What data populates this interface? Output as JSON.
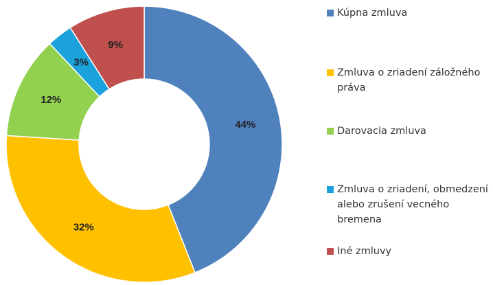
{
  "chart_data": {
    "type": "donut",
    "categories": [
      "Kúpna zmluva",
      "Zmluva o zriadení záložného práva",
      "Darovacia zmluva",
      "Zmluva o zriadení, obmedzení alebo zrušení vecného bremena",
      "Iné zmluvy"
    ],
    "values": [
      44,
      32,
      12,
      3,
      9
    ],
    "value_labels": [
      "44%",
      "32%",
      "12%",
      "3%",
      "9%"
    ],
    "colors": [
      "#4f81bd",
      "#ffc000",
      "#92d050",
      "#1ba1dc",
      "#c0504d"
    ]
  }
}
